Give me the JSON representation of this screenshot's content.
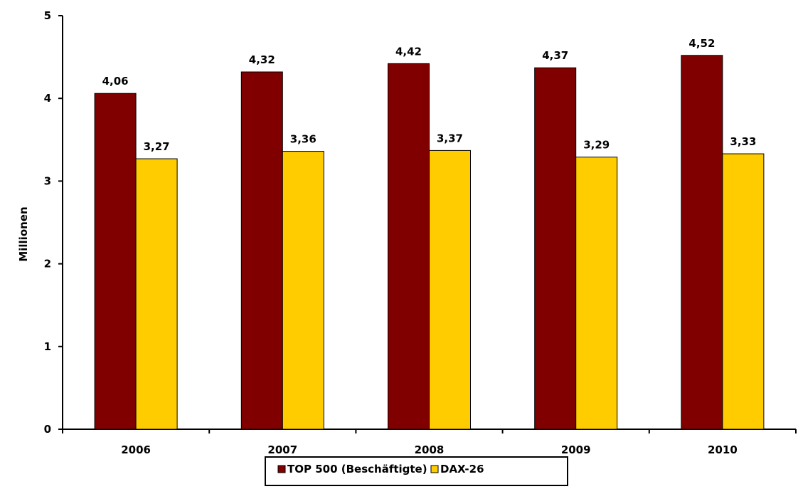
{
  "chart_data": {
    "type": "bar",
    "categories": [
      "2006",
      "2007",
      "2008",
      "2009",
      "2010"
    ],
    "series": [
      {
        "name": "TOP 500 (Beschäftigte)",
        "values": [
          4.06,
          4.32,
          4.42,
          4.37,
          4.52
        ],
        "labels": [
          "4,06",
          "4,32",
          "4,42",
          "4,37",
          "4,52"
        ],
        "color": "#800000"
      },
      {
        "name": "DAX-26",
        "values": [
          3.27,
          3.36,
          3.37,
          3.29,
          3.33
        ],
        "labels": [
          "3,27",
          "3,36",
          "3,37",
          "3,29",
          "3,33"
        ],
        "color": "#FFCC00"
      }
    ],
    "ylabel": "Millionen",
    "ylim": [
      0,
      5
    ],
    "yticks": [
      0,
      1,
      2,
      3,
      4,
      5
    ],
    "grid": false,
    "legend_position": "bottom"
  }
}
